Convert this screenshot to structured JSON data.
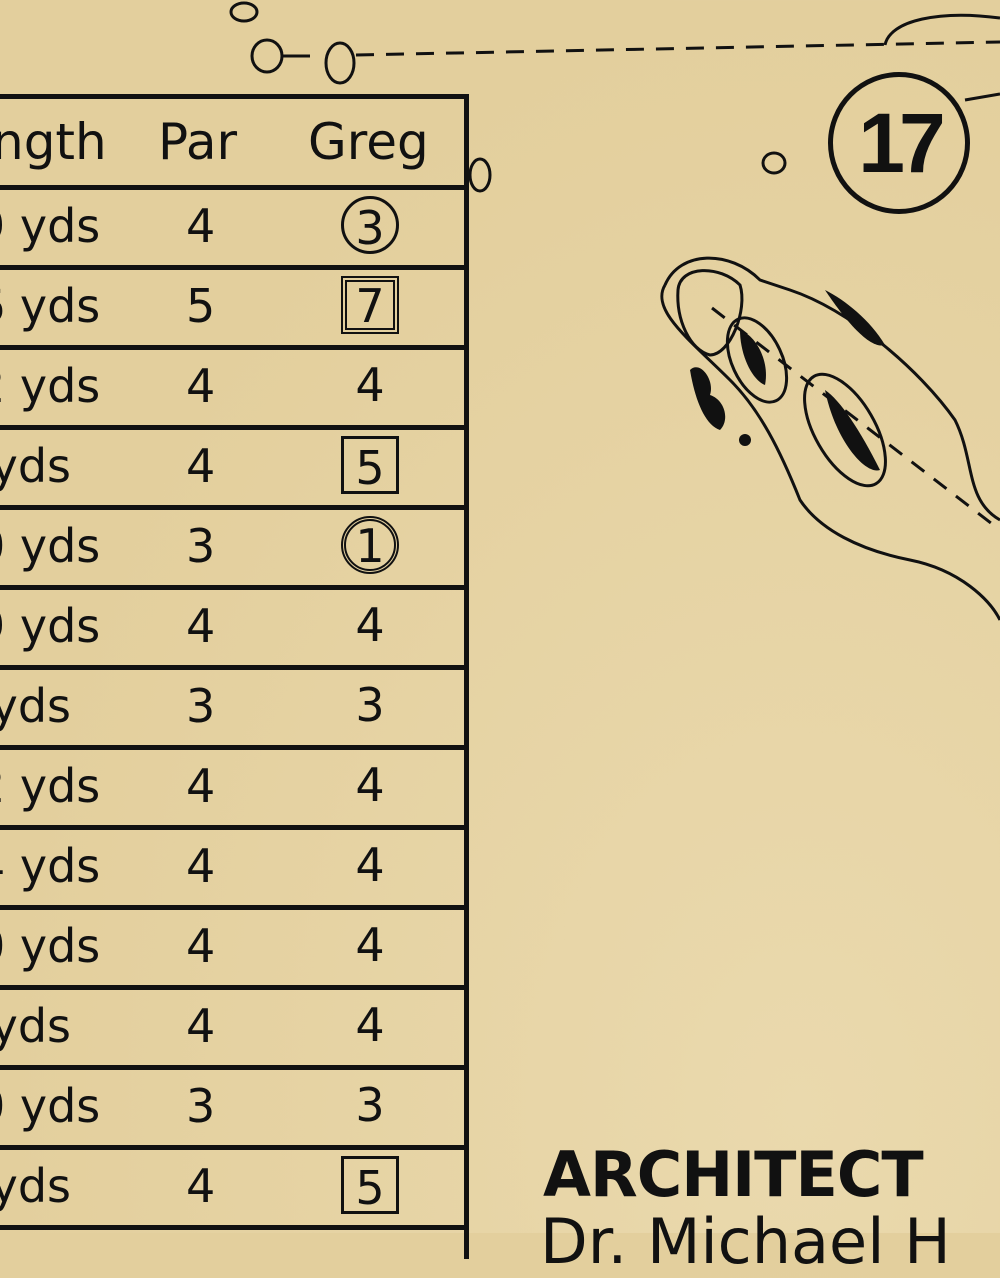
{
  "scorecard": {
    "headers": {
      "length": "ngth",
      "par": "Par",
      "player": "Greg"
    },
    "rows": [
      {
        "length": "9 yds",
        "par": "4",
        "score": "3",
        "mark": "circle"
      },
      {
        "length": "6 yds",
        "par": "5",
        "score": "7",
        "mark": "double-square"
      },
      {
        "length": "2 yds",
        "par": "4",
        "score": "4",
        "mark": "none"
      },
      {
        "length": " yds",
        "par": "4",
        "score": "5",
        "mark": "square"
      },
      {
        "length": "0 yds",
        "par": "3",
        "score": "1",
        "mark": "double-circle"
      },
      {
        "length": "9 yds",
        "par": "4",
        "score": "4",
        "mark": "none"
      },
      {
        "length": " yds",
        "par": "3",
        "score": "3",
        "mark": "none"
      },
      {
        "length": "2 yds",
        "par": "4",
        "score": "4",
        "mark": "none"
      },
      {
        "length": "4 yds",
        "par": "4",
        "score": "4",
        "mark": "none"
      },
      {
        "length": "0 yds",
        "par": "4",
        "score": "4",
        "mark": "none"
      },
      {
        "length": " yds",
        "par": "4",
        "score": "4",
        "mark": "none"
      },
      {
        "length": "0 yds",
        "par": "3",
        "score": "3",
        "mark": "none"
      },
      {
        "length": " yds",
        "par": "4",
        "score": "5",
        "mark": "square"
      }
    ]
  },
  "map": {
    "hole_number": "17"
  },
  "architect": {
    "label": "ARCHITECT",
    "name": "Dr. Michael H"
  },
  "colors": {
    "paper": "#e5d2a2",
    "ink": "#111111"
  }
}
